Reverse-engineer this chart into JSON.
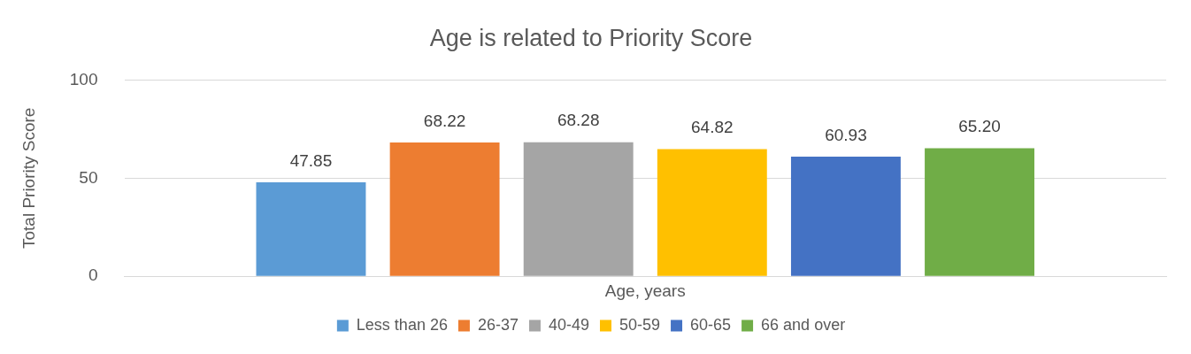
{
  "chart_data": {
    "type": "bar",
    "title": "Age is related to Priority Score",
    "ylabel": "Total Priority Score",
    "categories": [
      "Age, years"
    ],
    "series": [
      {
        "name": "Less than 26",
        "color": "#5b9bd5",
        "values": [
          47.85
        ],
        "value_labels": [
          "47.85"
        ]
      },
      {
        "name": "26-37",
        "color": "#ed7d31",
        "values": [
          68.22
        ],
        "value_labels": [
          "68.22"
        ]
      },
      {
        "name": "40-49",
        "color": "#a5a5a5",
        "values": [
          68.28
        ],
        "value_labels": [
          "68.28"
        ]
      },
      {
        "name": "50-59",
        "color": "#ffc000",
        "values": [
          64.82
        ],
        "value_labels": [
          "64.82"
        ]
      },
      {
        "name": "60-65",
        "color": "#4472c4",
        "values": [
          60.93
        ],
        "value_labels": [
          "60.93"
        ]
      },
      {
        "name": "66 and over",
        "color": "#70ad47",
        "values": [
          65.2
        ],
        "value_labels": [
          "65.20"
        ]
      }
    ],
    "ylim": [
      0,
      100
    ],
    "yticks": [
      0,
      50,
      100
    ],
    "grid": "y",
    "legend": "bottom"
  }
}
